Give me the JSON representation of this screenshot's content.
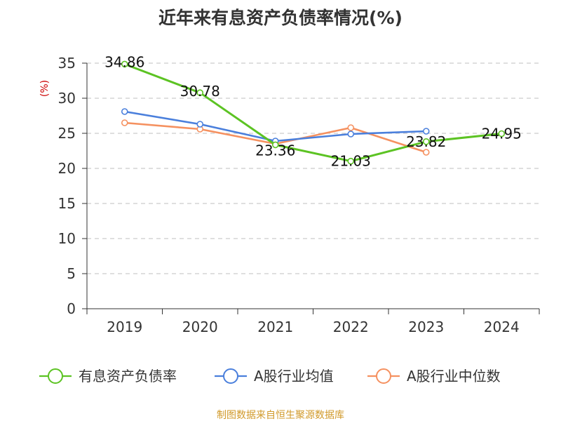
{
  "chart_data": {
    "type": "line",
    "title": "近年来有息资产负债率情况(%)",
    "ylabel": "(%)",
    "xlabel": "",
    "categories": [
      "2019",
      "2020",
      "2021",
      "2022",
      "2023",
      "2024"
    ],
    "ylim": [
      0,
      35
    ],
    "yticks": [
      0,
      5,
      10,
      15,
      20,
      25,
      30,
      35
    ],
    "grid": true,
    "legend_position": "bottom",
    "series": [
      {
        "name": "有息资产负债率",
        "color": "#5cc323",
        "values": [
          34.86,
          30.78,
          23.36,
          21.03,
          23.82,
          24.95
        ],
        "labels": [
          "34.86",
          "30.78",
          "23.36",
          "21.03",
          "23.82",
          "24.95"
        ]
      },
      {
        "name": "A股行业均值",
        "color": "#4a7fdc",
        "values": [
          28.1,
          26.3,
          23.9,
          24.9,
          25.3,
          null
        ]
      },
      {
        "name": "A股行业中位数",
        "color": "#f59160",
        "values": [
          26.5,
          25.6,
          23.5,
          25.8,
          22.3,
          null
        ]
      }
    ],
    "source": "制图数据来自恒生聚源数据库"
  }
}
